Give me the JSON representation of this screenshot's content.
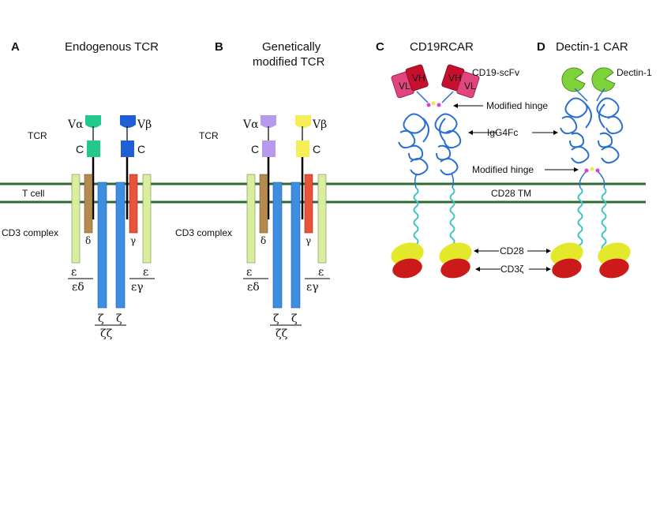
{
  "panels": {
    "a": {
      "letter": "A",
      "title": "Endogenous TCR"
    },
    "b": {
      "letter": "B",
      "title_line1": "Genetically",
      "title_line2": "modified TCR"
    },
    "c": {
      "letter": "C",
      "title": "CD19RCAR"
    },
    "d": {
      "letter": "D",
      "title": "Dectin-1 CAR"
    }
  },
  "labels": {
    "tcr": "TCR",
    "t_cell": "T cell",
    "cd3_complex": "CD3 complex",
    "v_alpha": "Vα",
    "v_beta": "Vβ",
    "c_domain": "C",
    "delta": "δ",
    "gamma": "γ",
    "epsilon": "ε",
    "epsilon_delta": "εδ",
    "epsilon_gamma": "εγ",
    "zeta": "ζ",
    "zeta_zeta": "ζζ",
    "vl": "VL",
    "vh": "VH",
    "cd19_scfv": "CD19-scFv",
    "modified_hinge": "Modified hinge",
    "igg4fc": "IgG4Fc",
    "cd28_tm": "CD28 TM",
    "cd28": "CD28",
    "cd3_zeta": "CD3ζ",
    "dectin1": "Dectin-1"
  },
  "colors": {
    "membrane": "#2e6b2e",
    "epsilon_chain": "#d8ee9c",
    "delta_chain": "#b58a4e",
    "gamma_chain": "#e8533a",
    "zeta_chain": "#3d8ee0",
    "endogenous_alpha": "#22c98a",
    "endogenous_beta": "#1f5fd6",
    "modified_alpha": "#b79af0",
    "modified_beta": "#f5ee55",
    "scfv": "#e0457e",
    "scfv_dark": "#c8102e",
    "fc_ribbon": "#2a6fd0",
    "helix": "#3fc4c0",
    "cd28_domain": "#e3e82a",
    "cd3z_domain": "#cc1a1a",
    "dectin_domain": "#7ed23a"
  }
}
